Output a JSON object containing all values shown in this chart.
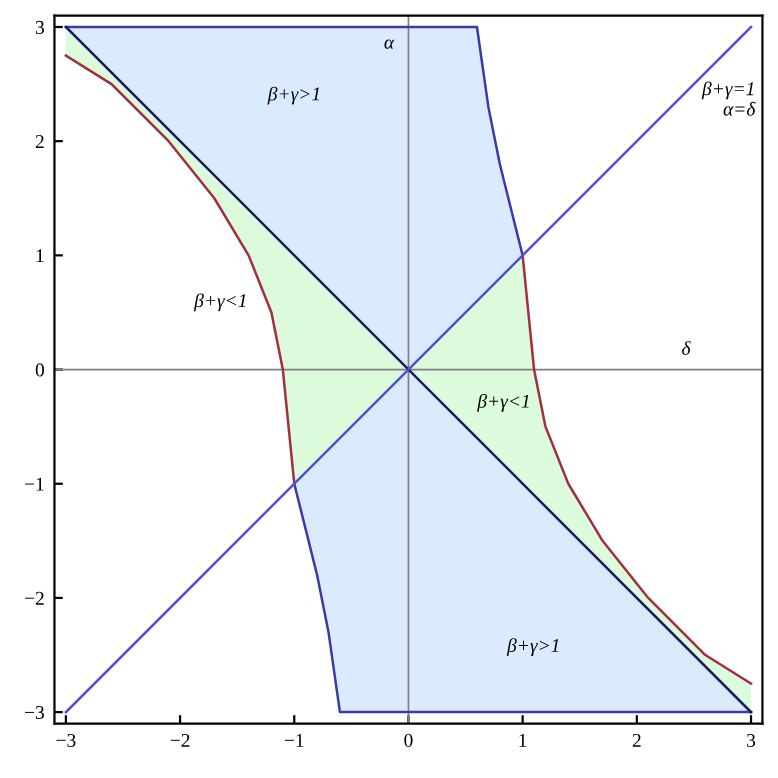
{
  "chart_data": {
    "type": "line",
    "xlim": [
      -3.1,
      3.1
    ],
    "ylim": [
      -3.1,
      3.1
    ],
    "xticks": [
      {
        "value": -3,
        "label": "−3"
      },
      {
        "value": -2,
        "label": "−2"
      },
      {
        "value": -1,
        "label": "−1"
      },
      0,
      1,
      2,
      3
    ],
    "yticks": [
      {
        "value": -3,
        "label": "−3"
      },
      {
        "value": -2,
        "label": "−2"
      },
      {
        "value": -1,
        "label": "−1"
      },
      0,
      1,
      2,
      3
    ],
    "grid": false,
    "marker": "none",
    "line_style": "solid",
    "series": [
      {
        "color": "#3a3aa8",
        "x": [
          -3,
          0,
          0.6,
          0.7,
          0.8,
          0.9,
          1.0,
          null,
          -1,
          -0.9,
          -0.8,
          -0.7,
          -0.6,
          0,
          3
        ],
        "values": [
          3,
          3,
          3,
          2.3,
          1.8,
          1.4,
          1.0,
          null,
          -1,
          -1.4,
          -1.8,
          -2.3,
          -3,
          -3,
          -3
        ],
        "lower": [
          3,
          0,
          0.6,
          0.7,
          0.8,
          0.9,
          1.0,
          null,
          -1,
          -1.4,
          -1.8,
          -2.3,
          -3,
          -3,
          -3
        ],
        "upper": [
          3,
          3,
          3,
          2.3,
          1.8,
          1.4,
          1.0,
          null,
          -1,
          -0.9,
          -0.8,
          -0.7,
          -0.6,
          0,
          -3
        ]
      },
      {
        "color": "#a03040",
        "x": [
          -3,
          -2.6,
          -2.1,
          -1.7,
          -1.4,
          -1.2,
          -1.1,
          -1.05,
          -1,
          0,
          null,
          0,
          1,
          1.05,
          1.1,
          1.2,
          1.4,
          1.7,
          2.1,
          2.6,
          3
        ],
        "values": [
          2.75,
          2.5,
          2,
          1.5,
          1,
          0.5,
          0,
          -0.5,
          -1,
          null,
          null,
          null,
          1,
          0.5,
          0,
          -0.5,
          -1,
          -1.5,
          -2,
          -2.5,
          -2.75
        ],
        "lower": [
          2.75,
          2.5,
          2,
          1.5,
          1,
          0.5,
          0,
          -0.5,
          -1,
          0,
          null,
          0,
          -1,
          -1.05,
          -1.1,
          -1.2,
          -1.4,
          -1.7,
          -2.1,
          -2.6,
          -3
        ],
        "upper": [
          3,
          2.6,
          2.1,
          1.7,
          1.4,
          1.2,
          1.1,
          1.05,
          1,
          0,
          null,
          0,
          1,
          0.5,
          0,
          -0.5,
          -1,
          -1.5,
          -2,
          -2.5,
          -2.75
        ]
      },
      {
        "color": "#1c1c60",
        "x": [
          -3,
          3
        ],
        "values": [
          3,
          -3
        ]
      },
      {
        "color": "#5050d0",
        "x": [
          -3,
          3
        ],
        "values": [
          -3,
          3
        ]
      }
    ],
    "ref_lines": [
      {
        "axis": "x",
        "value": 0,
        "label": "α",
        "color": "#808080"
      },
      {
        "axis": "y",
        "value": 0,
        "label": "δ",
        "color": "#808080"
      }
    ],
    "annotations": [
      "β+γ>1",
      "β+γ<1",
      "β+γ<1",
      "β+γ>1",
      "β+γ=1\nα=δ"
    ]
  }
}
